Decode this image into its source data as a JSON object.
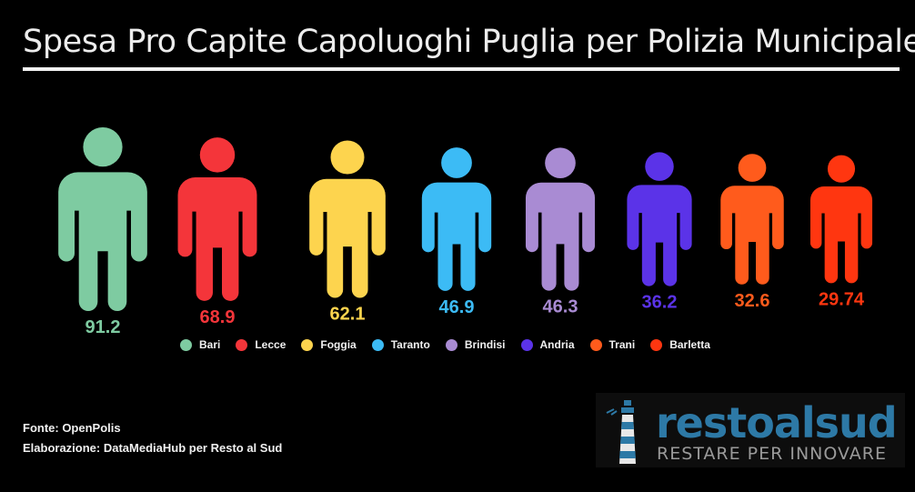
{
  "title": "Spesa Pro Capite Capoluoghi Puglia per Polizia Municipale",
  "chart_data": {
    "type": "bar",
    "title": "Spesa Pro Capite Capoluoghi Puglia per Polizia Municipale",
    "categories": [
      "Bari",
      "Lecce",
      "Foggia",
      "Taranto",
      "Brindisi",
      "Andria",
      "Trani",
      "Barletta"
    ],
    "values": [
      91.2,
      68.9,
      62.1,
      46.9,
      46.3,
      36.2,
      32.6,
      29.74
    ],
    "value_labels": [
      "91.2",
      "68.9",
      "62.1",
      "46.9",
      "46.3",
      "36.2",
      "32.6",
      "29.74"
    ],
    "colors": [
      "#7ecba1",
      "#f4353a",
      "#fdd44e",
      "#3cbbf5",
      "#a98bd3",
      "#5b33e8",
      "#ff5b1c",
      "#ff3610"
    ],
    "legend_position": "bottom",
    "grid": false
  },
  "footer": {
    "source": "Fonte: OpenPolis",
    "credit": "Elaborazione: DataMediaHub per Resto al Sud"
  },
  "logo": {
    "wordmark": "restoalsud",
    "tagline": "RESTARE PER INNOVARE"
  }
}
